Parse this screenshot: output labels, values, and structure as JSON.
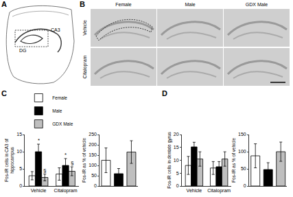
{
  "panels": {
    "A": {
      "label": "A",
      "texts": [
        "DG",
        "CA3"
      ]
    },
    "B": {
      "label": "B",
      "columns": [
        "Female",
        "Male",
        "GDX Male"
      ],
      "rows": [
        "Vehicle",
        "Citalopram"
      ]
    },
    "C": {
      "label": "C"
    },
    "D": {
      "label": "D"
    }
  },
  "chart_data": [
    {
      "type": "bar",
      "ylabel": [
        "Fos-IR cells in CA3 of",
        "hippocampus"
      ],
      "categories": [
        "Vehicle",
        "Citalopram"
      ],
      "series": [
        {
          "name": "Female",
          "color": "#ffffff",
          "values": [
            3,
            3.5
          ],
          "errors": [
            1.2,
            1.8
          ]
        },
        {
          "name": "Male",
          "color": "#000000",
          "values": [
            10,
            6
          ],
          "errors": [
            2.2,
            2
          ]
        },
        {
          "name": "GDX Male",
          "color": "#bfbfbf",
          "values": [
            2.5,
            4.3
          ],
          "errors": [
            1,
            1.3
          ]
        }
      ],
      "annotations": [
        {
          "category": "Vehicle",
          "series": "Male",
          "text": "*"
        },
        {
          "category": "Vehicle",
          "series": "GDX Male",
          "text": "§"
        },
        {
          "category": "Citalopram",
          "series": "Male",
          "text": "*"
        },
        {
          "category": "Citalopram",
          "series": "GDX Male",
          "text": "§"
        }
      ],
      "ylim": [
        0,
        15
      ],
      "yticks": [
        0,
        5,
        10,
        15
      ],
      "legend": "upper left",
      "grid": false
    },
    {
      "type": "bar",
      "ylabel": [
        "Fos-IR as % of vehicle"
      ],
      "categories": [
        null,
        null,
        null
      ],
      "values": [
        125,
        60,
        165
      ],
      "errors": [
        60,
        25,
        55
      ],
      "colors": [
        "#ffffff",
        "#000000",
        "#bfbfbf"
      ],
      "ylim": [
        0,
        250
      ],
      "yticks": [
        0,
        50,
        100,
        150,
        200,
        250
      ],
      "grid": false
    },
    {
      "type": "bar",
      "ylabel": [
        "Fos-IR cells in dentate gyrus"
      ],
      "categories": [
        "Vehicle",
        "Citalopram"
      ],
      "series": [
        {
          "name": "Female",
          "color": "#ffffff",
          "values": [
            8,
            7
          ],
          "errors": [
            3.5,
            2.5
          ]
        },
        {
          "name": "Male",
          "color": "#000000",
          "values": [
            15.2,
            7.5
          ],
          "errors": [
            1.8,
            2
          ]
        },
        {
          "name": "GDX Male",
          "color": "#bfbfbf",
          "values": [
            10.5,
            10.5
          ],
          "errors": [
            2.8,
            2.8
          ]
        }
      ],
      "ylim": [
        0,
        20
      ],
      "yticks": [
        0,
        5,
        10,
        15,
        20
      ],
      "grid": false
    },
    {
      "type": "bar",
      "ylabel": [
        "Fos-IR as % of vehicle"
      ],
      "categories": [
        null,
        null,
        null
      ],
      "values": [
        88,
        48,
        100
      ],
      "errors": [
        35,
        20,
        28
      ],
      "colors": [
        "#ffffff",
        "#000000",
        "#bfbfbf"
      ],
      "ylim": [
        0,
        150
      ],
      "yticks": [
        0,
        50,
        100,
        150
      ],
      "grid": false
    }
  ]
}
